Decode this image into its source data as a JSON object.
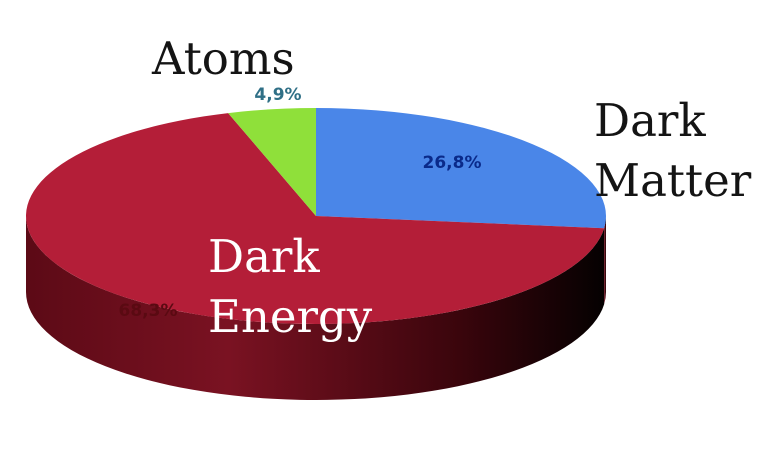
{
  "chart_data": {
    "type": "pie",
    "title": "",
    "style": "3d",
    "slices": [
      {
        "name": "Dark Matter",
        "name_lines": [
          "Dark",
          "Matter"
        ],
        "value": 26.8,
        "label": "26,8%",
        "color": "#4a86e8",
        "side_color": "#2f5fb0",
        "label_color": "#0a2a8a"
      },
      {
        "name": "Dark Energy",
        "name_lines": [
          "Dark",
          "Energy"
        ],
        "value": 68.3,
        "label": "68,3%",
        "color": "#b41e38",
        "side_color": "#6e0f1e",
        "label_color": "#5a0a12"
      },
      {
        "name": "Atoms",
        "name_lines": [
          "Atoms"
        ],
        "value": 4.9,
        "label": "4,9%",
        "color": "#8fe03a",
        "side_color": "#5a9a1e",
        "label_color": "#2f6f86"
      }
    ]
  }
}
